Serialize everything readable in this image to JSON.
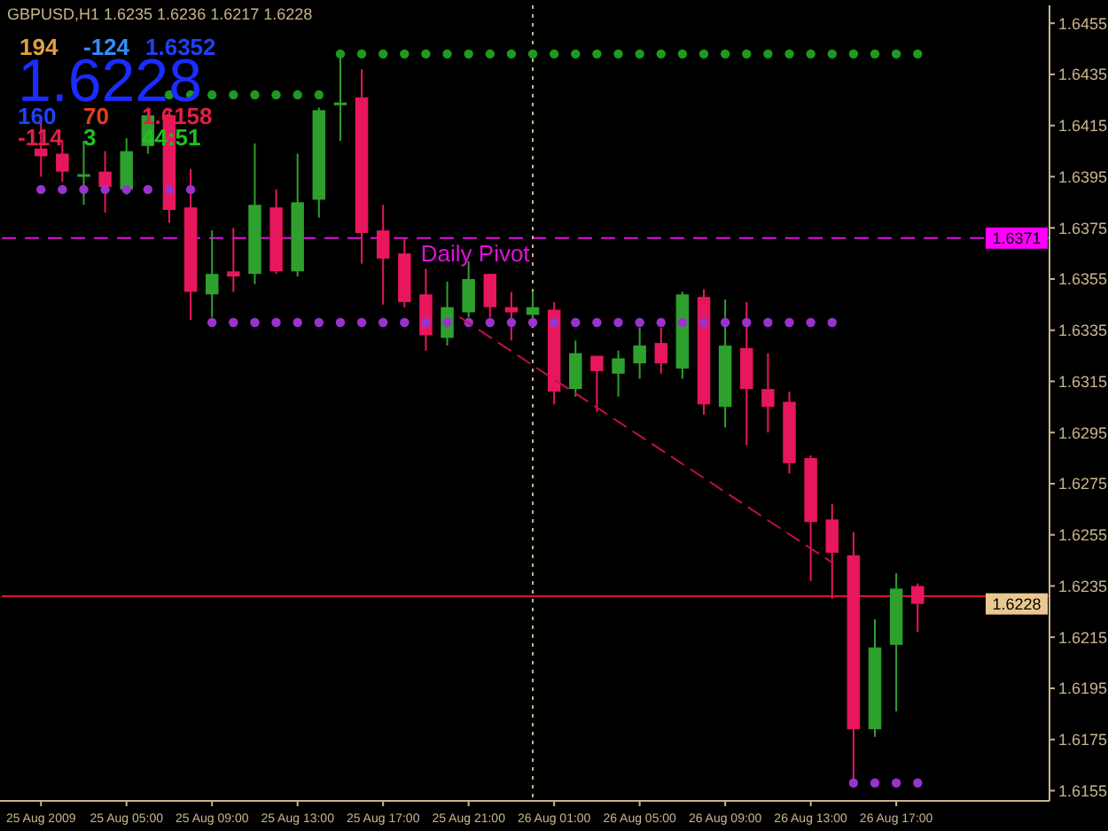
{
  "chart_data": {
    "type": "candlestick",
    "title": "GBPUSD,H1  1.6235 1.6236 1.6217 1.6228",
    "x": [
      "2009-08-25T01:00",
      "2009-08-25T02:00",
      "2009-08-25T03:00",
      "2009-08-25T04:00",
      "2009-08-25T05:00",
      "2009-08-25T06:00",
      "2009-08-25T07:00",
      "2009-08-25T08:00",
      "2009-08-25T09:00",
      "2009-08-25T10:00",
      "2009-08-25T11:00",
      "2009-08-25T12:00",
      "2009-08-25T13:00",
      "2009-08-25T14:00",
      "2009-08-25T15:00",
      "2009-08-25T16:00",
      "2009-08-25T17:00",
      "2009-08-25T18:00",
      "2009-08-25T19:00",
      "2009-08-25T20:00",
      "2009-08-25T21:00",
      "2009-08-25T22:00",
      "2009-08-25T23:00",
      "2009-08-26T00:00",
      "2009-08-26T01:00",
      "2009-08-26T02:00",
      "2009-08-26T03:00",
      "2009-08-26T04:00",
      "2009-08-26T05:00",
      "2009-08-26T06:00",
      "2009-08-26T07:00",
      "2009-08-26T08:00",
      "2009-08-26T09:00",
      "2009-08-26T10:00",
      "2009-08-26T11:00",
      "2009-08-26T12:00",
      "2009-08-26T13:00",
      "2009-08-26T14:00",
      "2009-08-26T15:00",
      "2009-08-26T16:00",
      "2009-08-26T17:00",
      "2009-08-26T18:00"
    ],
    "ohlc": [
      [
        1.6406,
        1.6417,
        1.6395,
        1.6403
      ],
      [
        1.6404,
        1.6409,
        1.6393,
        1.6397
      ],
      [
        1.6395,
        1.6409,
        1.6384,
        1.6396
      ],
      [
        1.6397,
        1.6405,
        1.6381,
        1.6391
      ],
      [
        1.639,
        1.641,
        1.6388,
        1.6405
      ],
      [
        1.6407,
        1.6422,
        1.6404,
        1.6419
      ],
      [
        1.6419,
        1.6421,
        1.6377,
        1.6382
      ],
      [
        1.6383,
        1.6398,
        1.6339,
        1.635
      ],
      [
        1.6349,
        1.6374,
        1.634,
        1.6357
      ],
      [
        1.6358,
        1.6375,
        1.635,
        1.6356
      ],
      [
        1.6357,
        1.6408,
        1.6353,
        1.6384
      ],
      [
        1.6383,
        1.639,
        1.6357,
        1.6358
      ],
      [
        1.6358,
        1.6404,
        1.6356,
        1.6385
      ],
      [
        1.6386,
        1.6422,
        1.6379,
        1.6421
      ],
      [
        1.6423,
        1.6443,
        1.6409,
        1.6424
      ],
      [
        1.6426,
        1.6437,
        1.6361,
        1.6373
      ],
      [
        1.6374,
        1.6384,
        1.6345,
        1.6363
      ],
      [
        1.6365,
        1.6371,
        1.6344,
        1.6346
      ],
      [
        1.6349,
        1.6359,
        1.6327,
        1.6333
      ],
      [
        1.6332,
        1.6354,
        1.6329,
        1.6344
      ],
      [
        1.6342,
        1.6362,
        1.634,
        1.6355
      ],
      [
        1.6357,
        1.6357,
        1.634,
        1.6344
      ],
      [
        1.6344,
        1.635,
        1.6331,
        1.6342
      ],
      [
        1.6341,
        1.635,
        1.6338,
        1.6344
      ],
      [
        1.6343,
        1.6346,
        1.6306,
        1.6311
      ],
      [
        1.6312,
        1.6331,
        1.6309,
        1.6326
      ],
      [
        1.6325,
        1.6325,
        1.6303,
        1.6319
      ],
      [
        1.6318,
        1.6327,
        1.6309,
        1.6324
      ],
      [
        1.6322,
        1.6336,
        1.6316,
        1.6329
      ],
      [
        1.633,
        1.6336,
        1.6318,
        1.6322
      ],
      [
        1.632,
        1.635,
        1.6316,
        1.6349
      ],
      [
        1.6348,
        1.6351,
        1.6302,
        1.6306
      ],
      [
        1.6305,
        1.6347,
        1.6297,
        1.6329
      ],
      [
        1.6328,
        1.6346,
        1.629,
        1.6312
      ],
      [
        1.6312,
        1.6326,
        1.6295,
        1.6305
      ],
      [
        1.6307,
        1.6311,
        1.6279,
        1.6283
      ],
      [
        1.6285,
        1.6286,
        1.6237,
        1.626
      ],
      [
        1.6261,
        1.6267,
        1.623,
        1.6248
      ],
      [
        1.6247,
        1.6256,
        1.6158,
        1.6179
      ],
      [
        1.6179,
        1.6222,
        1.6176,
        1.6211
      ],
      [
        1.6212,
        1.624,
        1.6186,
        1.6234
      ],
      [
        1.6235,
        1.6236,
        1.6217,
        1.6228
      ]
    ],
    "colors": [
      "#e8175d",
      "#e8175d",
      "#2ea02e",
      "#e8175d",
      "#2ea02e",
      "#2ea02e",
      "#e8175d",
      "#e8175d",
      "#2ea02e",
      "#e8175d",
      "#2ea02e",
      "#e8175d",
      "#2ea02e",
      "#2ea02e",
      "#2ea02e",
      "#e8175d",
      "#e8175d",
      "#e8175d",
      "#e8175d",
      "#2ea02e",
      "#2ea02e",
      "#e8175d",
      "#e8175d",
      "#2ea02e",
      "#e8175d",
      "#2ea02e",
      "#e8175d",
      "#2ea02e",
      "#2ea02e",
      "#e8175d",
      "#2ea02e",
      "#e8175d",
      "#2ea02e",
      "#e8175d",
      "#e8175d",
      "#e8175d",
      "#e8175d",
      "#e8175d",
      "#e8175d",
      "#2ea02e",
      "#2ea02e",
      "#e8175d"
    ],
    "series": [
      {
        "type": "scatter",
        "marker": "circle",
        "color": "#1f9a1f",
        "x": [
          "2009-08-25T15:00",
          "2009-08-25T16:00",
          "2009-08-25T17:00",
          "2009-08-25T18:00",
          "2009-08-25T19:00",
          "2009-08-25T20:00",
          "2009-08-25T21:00",
          "2009-08-25T22:00",
          "2009-08-25T23:00",
          "2009-08-26T00:00",
          "2009-08-26T01:00",
          "2009-08-26T02:00",
          "2009-08-26T03:00",
          "2009-08-26T04:00",
          "2009-08-26T05:00",
          "2009-08-26T06:00",
          "2009-08-26T07:00",
          "2009-08-26T08:00",
          "2009-08-26T09:00",
          "2009-08-26T10:00",
          "2009-08-26T11:00",
          "2009-08-26T12:00",
          "2009-08-26T13:00",
          "2009-08-26T14:00",
          "2009-08-26T15:00",
          "2009-08-26T16:00",
          "2009-08-26T17:00",
          "2009-08-26T18:00"
        ],
        "values": [
          1.6443,
          1.6443,
          1.6443,
          1.6443,
          1.6443,
          1.6443,
          1.6443,
          1.6443,
          1.6443,
          1.6443,
          1.6443,
          1.6443,
          1.6443,
          1.6443,
          1.6443,
          1.6443,
          1.6443,
          1.6443,
          1.6443,
          1.6443,
          1.6443,
          1.6443,
          1.6443,
          1.6443,
          1.6443,
          1.6443,
          1.6443,
          1.6443
        ]
      },
      {
        "type": "scatter",
        "marker": "circle",
        "color": "#1f9a1f",
        "x": [
          "2009-08-25T07:00",
          "2009-08-25T08:00",
          "2009-08-25T09:00",
          "2009-08-25T10:00",
          "2009-08-25T11:00",
          "2009-08-25T12:00",
          "2009-08-25T13:00",
          "2009-08-25T14:00"
        ],
        "values": [
          1.6427,
          1.6427,
          1.6427,
          1.6427,
          1.6427,
          1.6427,
          1.6427,
          1.6427
        ]
      },
      {
        "type": "scatter",
        "marker": "circle",
        "color": "#9933cc",
        "x": [
          "2009-08-25T01:00",
          "2009-08-25T02:00",
          "2009-08-25T03:00",
          "2009-08-25T04:00",
          "2009-08-25T05:00",
          "2009-08-25T06:00",
          "2009-08-25T07:00",
          "2009-08-25T08:00"
        ],
        "values": [
          1.639,
          1.639,
          1.639,
          1.639,
          1.639,
          1.639,
          1.639,
          1.639
        ]
      },
      {
        "type": "scatter",
        "marker": "circle",
        "color": "#9933cc",
        "x": [
          "2009-08-25T09:00",
          "2009-08-25T10:00",
          "2009-08-25T11:00",
          "2009-08-25T12:00",
          "2009-08-25T13:00",
          "2009-08-25T14:00",
          "2009-08-25T15:00",
          "2009-08-25T16:00",
          "2009-08-25T17:00",
          "2009-08-25T18:00",
          "2009-08-25T19:00",
          "2009-08-25T20:00",
          "2009-08-25T21:00",
          "2009-08-25T22:00",
          "2009-08-25T23:00",
          "2009-08-26T00:00",
          "2009-08-26T01:00",
          "2009-08-26T02:00",
          "2009-08-26T03:00",
          "2009-08-26T04:00",
          "2009-08-26T05:00",
          "2009-08-26T06:00",
          "2009-08-26T07:00",
          "2009-08-26T08:00",
          "2009-08-26T09:00",
          "2009-08-26T10:00",
          "2009-08-26T11:00",
          "2009-08-26T12:00",
          "2009-08-26T13:00",
          "2009-08-26T14:00"
        ],
        "values": [
          1.6338,
          1.6338,
          1.6338,
          1.6338,
          1.6338,
          1.6338,
          1.6338,
          1.6338,
          1.6338,
          1.6338,
          1.6338,
          1.6338,
          1.6338,
          1.6338,
          1.6338,
          1.6338,
          1.6338,
          1.6338,
          1.6338,
          1.6338,
          1.6338,
          1.6338,
          1.6338,
          1.6338,
          1.6338,
          1.6338,
          1.6338,
          1.6338,
          1.6338,
          1.6338
        ]
      },
      {
        "type": "scatter",
        "marker": "circle",
        "color": "#9933cc",
        "x": [
          "2009-08-26T15:00",
          "2009-08-26T16:00",
          "2009-08-26T17:00",
          "2009-08-26T18:00"
        ],
        "values": [
          1.6158,
          1.6158,
          1.6158,
          1.6158
        ]
      },
      {
        "type": "line",
        "line_style": "dashed",
        "color": "#c0104a",
        "x": [
          "2009-08-25T20:36",
          "2009-08-26T14:02"
        ],
        "values": [
          1.634,
          1.6244
        ]
      }
    ],
    "xlim": [
      "2009-08-24T23:10",
      "2009-08-27T00:10"
    ],
    "xticks": [
      {
        "value": "2009-08-25T01:00",
        "label": "25 Aug 2009"
      },
      {
        "value": "2009-08-25T05:00",
        "label": "25 Aug 05:00"
      },
      {
        "value": "2009-08-25T09:00",
        "label": "25 Aug 09:00"
      },
      {
        "value": "2009-08-25T13:00",
        "label": "25 Aug 13:00"
      },
      {
        "value": "2009-08-25T17:00",
        "label": "25 Aug 17:00"
      },
      {
        "value": "2009-08-25T21:00",
        "label": "25 Aug 21:00"
      },
      {
        "value": "2009-08-26T01:00",
        "label": "26 Aug 01:00"
      },
      {
        "value": "2009-08-26T05:00",
        "label": "26 Aug 05:00"
      },
      {
        "value": "2009-08-26T09:00",
        "label": "26 Aug 09:00"
      },
      {
        "value": "2009-08-26T13:00",
        "label": "26 Aug 13:00"
      },
      {
        "value": "2009-08-26T17:00",
        "label": "26 Aug 17:00"
      }
    ],
    "ylim": [
      1.6151,
      1.6462
    ],
    "yticks": [
      1.6455,
      1.6435,
      1.6415,
      1.6395,
      1.6375,
      1.6355,
      1.6335,
      1.6315,
      1.6295,
      1.6275,
      1.6255,
      1.6235,
      1.6215,
      1.6195,
      1.6175,
      1.6155
    ],
    "ref_lines": [
      {
        "axis": "y",
        "value": 1.6371,
        "label": "Daily Pivot",
        "color": "#e010e0",
        "line_style": "dashed"
      },
      {
        "axis": "y",
        "value": 1.6231,
        "color": "#e0103c",
        "line_style": "solid"
      },
      {
        "axis": "x",
        "value": "2009-08-26T00:00",
        "color": "#c8b48c",
        "line_style": "dotted"
      }
    ],
    "annotations": [
      "194",
      "-124",
      "1.6352",
      "1.6228",
      "160",
      "70",
      "1.6158",
      "-114",
      "3",
      "44:51",
      {
        "text": "1.6371",
        "y": 1.6371
      },
      {
        "text": "1.6228",
        "y": 1.6228
      }
    ],
    "grid": false
  }
}
